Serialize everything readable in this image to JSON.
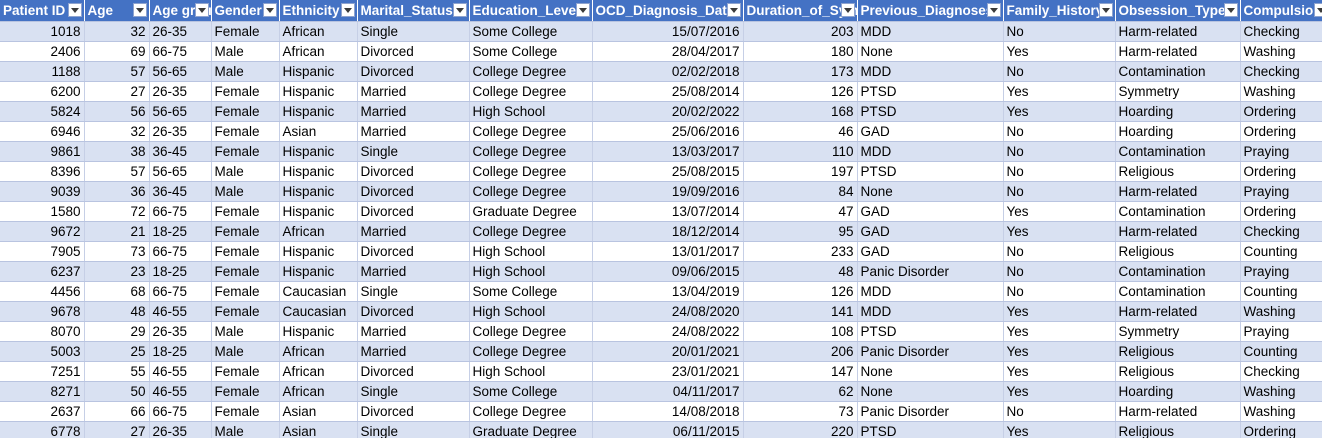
{
  "headers": [
    "Patient ID",
    "Age",
    "Age group",
    "Gender",
    "Ethnicity",
    "Marital_Status",
    "Education_Level",
    "OCD_Diagnosis_Date",
    "Duration_of_Symptoms",
    "Previous_Diagnoses",
    "Family_History",
    "Obsession_Type",
    "Compulsion_Type"
  ],
  "rows": [
    [
      "1018",
      "32",
      "26-35",
      "Female",
      "African",
      "Single",
      "Some College",
      "15/07/2016",
      "203",
      "MDD",
      "No",
      "Harm-related",
      "Checking"
    ],
    [
      "2406",
      "69",
      "66-75",
      "Male",
      "African",
      "Divorced",
      "Some College",
      "28/04/2017",
      "180",
      "None",
      "Yes",
      "Harm-related",
      "Washing"
    ],
    [
      "1188",
      "57",
      "56-65",
      "Male",
      "Hispanic",
      "Divorced",
      "College Degree",
      "02/02/2018",
      "173",
      "MDD",
      "No",
      "Contamination",
      "Checking"
    ],
    [
      "6200",
      "27",
      "26-35",
      "Female",
      "Hispanic",
      "Married",
      "College Degree",
      "25/08/2014",
      "126",
      "PTSD",
      "Yes",
      "Symmetry",
      "Washing"
    ],
    [
      "5824",
      "56",
      "56-65",
      "Female",
      "Hispanic",
      "Married",
      "High School",
      "20/02/2022",
      "168",
      "PTSD",
      "Yes",
      "Hoarding",
      "Ordering"
    ],
    [
      "6946",
      "32",
      "26-35",
      "Female",
      "Asian",
      "Married",
      "College Degree",
      "25/06/2016",
      "46",
      "GAD",
      "No",
      "Hoarding",
      "Ordering"
    ],
    [
      "9861",
      "38",
      "36-45",
      "Female",
      "Hispanic",
      "Single",
      "College Degree",
      "13/03/2017",
      "110",
      "MDD",
      "No",
      "Contamination",
      "Praying"
    ],
    [
      "8396",
      "57",
      "56-65",
      "Male",
      "Hispanic",
      "Divorced",
      "College Degree",
      "25/08/2015",
      "197",
      "PTSD",
      "No",
      "Religious",
      "Ordering"
    ],
    [
      "9039",
      "36",
      "36-45",
      "Male",
      "Hispanic",
      "Divorced",
      "College Degree",
      "19/09/2016",
      "84",
      "None",
      "No",
      "Harm-related",
      "Praying"
    ],
    [
      "1580",
      "72",
      "66-75",
      "Female",
      "Hispanic",
      "Divorced",
      "Graduate Degree",
      "13/07/2014",
      "47",
      "GAD",
      "Yes",
      "Contamination",
      "Ordering"
    ],
    [
      "9672",
      "21",
      "18-25",
      "Female",
      "African",
      "Married",
      "College Degree",
      "18/12/2014",
      "95",
      "GAD",
      "Yes",
      "Harm-related",
      "Checking"
    ],
    [
      "7905",
      "73",
      "66-75",
      "Female",
      "Hispanic",
      "Divorced",
      "High School",
      "13/01/2017",
      "233",
      "GAD",
      "No",
      "Religious",
      "Counting"
    ],
    [
      "6237",
      "23",
      "18-25",
      "Female",
      "Hispanic",
      "Married",
      "High School",
      "09/06/2015",
      "48",
      "Panic Disorder",
      "No",
      "Contamination",
      "Praying"
    ],
    [
      "4456",
      "68",
      "66-75",
      "Female",
      "Caucasian",
      "Single",
      "Some College",
      "13/04/2019",
      "126",
      "MDD",
      "No",
      "Contamination",
      "Counting"
    ],
    [
      "9678",
      "48",
      "46-55",
      "Female",
      "Caucasian",
      "Divorced",
      "High School",
      "24/08/2020",
      "141",
      "MDD",
      "Yes",
      "Harm-related",
      "Washing"
    ],
    [
      "8070",
      "29",
      "26-35",
      "Male",
      "Hispanic",
      "Married",
      "College Degree",
      "24/08/2022",
      "108",
      "PTSD",
      "Yes",
      "Symmetry",
      "Praying"
    ],
    [
      "5003",
      "25",
      "18-25",
      "Male",
      "African",
      "Married",
      "College Degree",
      "20/01/2021",
      "206",
      "Panic Disorder",
      "Yes",
      "Religious",
      "Counting"
    ],
    [
      "7251",
      "55",
      "46-55",
      "Female",
      "African",
      "Divorced",
      "High School",
      "23/01/2021",
      "147",
      "None",
      "Yes",
      "Religious",
      "Checking"
    ],
    [
      "8271",
      "50",
      "46-55",
      "Female",
      "African",
      "Single",
      "Some College",
      "04/11/2017",
      "62",
      "None",
      "Yes",
      "Hoarding",
      "Washing"
    ],
    [
      "2637",
      "66",
      "66-75",
      "Female",
      "Asian",
      "Divorced",
      "College Degree",
      "14/08/2018",
      "73",
      "Panic Disorder",
      "No",
      "Harm-related",
      "Washing"
    ],
    [
      "6778",
      "27",
      "26-35",
      "Male",
      "Asian",
      "Single",
      "Graduate Degree",
      "06/11/2015",
      "220",
      "PTSD",
      "Yes",
      "Religious",
      "Ordering"
    ]
  ],
  "numeric_columns": [
    0,
    1,
    7,
    8
  ],
  "colors": {
    "header_bg": "#4472c4",
    "band_bg": "#d9e1f2",
    "header_text": "#ffffff"
  }
}
